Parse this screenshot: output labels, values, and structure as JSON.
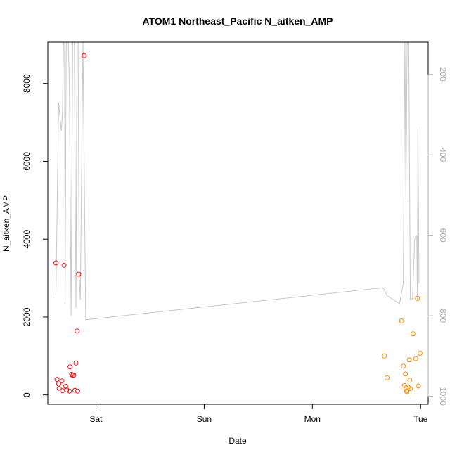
{
  "chart_data": {
    "type": "scatter",
    "title": "ATOM1 Northeast_Pacific N_aitken_AMP",
    "xlabel": "Date",
    "ylabel": "N_aitken_AMP",
    "x_ticks": [
      "Sat",
      "Sun",
      "Mon",
      "Tue"
    ],
    "x_tick_positions": [
      1.0,
      2.0,
      3.0,
      4.0
    ],
    "xlim": [
      0.555,
      4.07
    ],
    "ylim": [
      -240,
      9060
    ],
    "y_ticks": [
      0,
      2000,
      4000,
      6000,
      8000
    ],
    "y2_ticks": [
      200,
      400,
      600,
      800,
      1000
    ],
    "y2lim": [
      1020,
      120
    ],
    "y2_reversed": true,
    "line_color": "#c8c8c8",
    "colors": {
      "red": "#e41a1c",
      "orange": "#ff8c00"
    },
    "series": [
      {
        "color": "#e41a1c",
        "points": [
          [
            0.63,
            3390
          ],
          [
            0.64,
            400
          ],
          [
            0.655,
            280
          ],
          [
            0.66,
            170
          ],
          [
            0.685,
            360
          ],
          [
            0.69,
            110
          ],
          [
            0.705,
            3330
          ],
          [
            0.72,
            220
          ],
          [
            0.73,
            130
          ],
          [
            0.755,
            100
          ],
          [
            0.76,
            720
          ],
          [
            0.775,
            530
          ],
          [
            0.785,
            500
          ],
          [
            0.795,
            510
          ],
          [
            0.805,
            120
          ],
          [
            0.815,
            820
          ],
          [
            0.825,
            1640
          ],
          [
            0.83,
            100
          ],
          [
            0.84,
            3100
          ],
          [
            0.89,
            8710
          ]
        ]
      },
      {
        "color": "#ff8c00",
        "points": [
          [
            3.665,
            1000
          ],
          [
            3.69,
            440
          ],
          [
            3.825,
            1900
          ],
          [
            3.84,
            740
          ],
          [
            3.85,
            240
          ],
          [
            3.86,
            540
          ],
          [
            3.865,
            180
          ],
          [
            3.87,
            100
          ],
          [
            3.875,
            80
          ],
          [
            3.885,
            200
          ],
          [
            3.895,
            900
          ],
          [
            3.9,
            380
          ],
          [
            3.905,
            160
          ],
          [
            3.93,
            1570
          ],
          [
            3.955,
            930
          ],
          [
            3.97,
            2480
          ],
          [
            3.98,
            230
          ],
          [
            3.995,
            1070
          ]
        ]
      }
    ],
    "line_y2": [
      [
        0.63,
        750
      ],
      [
        0.655,
        270
      ],
      [
        0.68,
        340
      ],
      [
        0.69,
        300
      ],
      [
        0.7,
        120
      ],
      [
        0.71,
        120
      ],
      [
        0.715,
        760
      ],
      [
        0.725,
        120
      ],
      [
        0.745,
        120
      ],
      [
        0.755,
        240
      ],
      [
        0.77,
        800
      ],
      [
        0.785,
        120
      ],
      [
        0.8,
        120
      ],
      [
        0.815,
        780
      ],
      [
        0.825,
        120
      ],
      [
        0.835,
        120
      ],
      [
        0.845,
        700
      ],
      [
        0.855,
        760
      ],
      [
        0.88,
        120
      ],
      [
        0.905,
        810
      ],
      [
        3.655,
        730
      ],
      [
        3.69,
        750
      ],
      [
        3.805,
        770
      ],
      [
        3.84,
        720
      ],
      [
        3.855,
        120
      ],
      [
        3.865,
        510
      ],
      [
        3.875,
        120
      ],
      [
        3.89,
        120
      ],
      [
        3.905,
        760
      ],
      [
        3.925,
        760
      ],
      [
        3.945,
        610
      ],
      [
        3.965,
        600
      ],
      [
        3.97,
        760
      ],
      [
        3.975,
        330
      ],
      [
        3.985,
        720
      ]
    ]
  }
}
